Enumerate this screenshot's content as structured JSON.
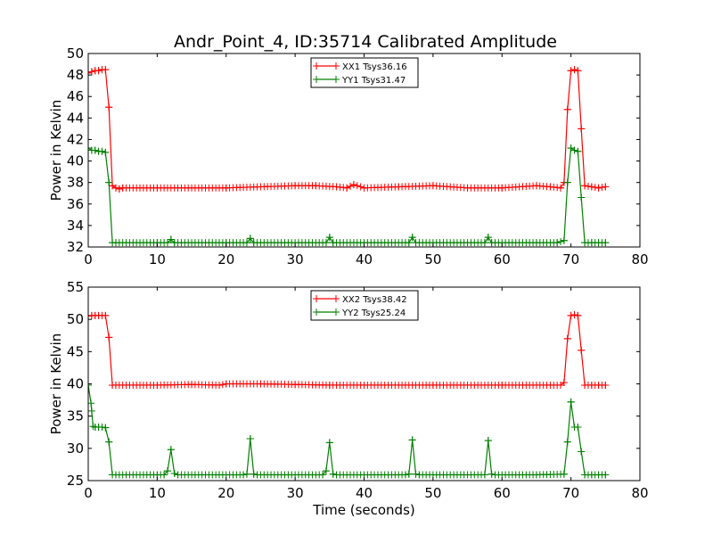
{
  "title": "Andr_Point_4, ID:35714 Calibrated Amplitude",
  "chart_data": [
    {
      "type": "line",
      "title": "Andr_Point_4, ID:35714 Calibrated Amplitude",
      "xlabel": "",
      "ylabel": "Power in Kelvin",
      "xlim": [
        0,
        80
      ],
      "ylim": [
        32,
        50
      ],
      "xticks": [
        "0",
        "10",
        "20",
        "30",
        "40",
        "50",
        "60",
        "70",
        "80"
      ],
      "yticks": [
        "32",
        "34",
        "36",
        "38",
        "40",
        "42",
        "44",
        "46",
        "48",
        "50"
      ],
      "grid": false,
      "legend": "top-center",
      "series": [
        {
          "name": "XX1 Tsys36.16",
          "color": "#ff0000",
          "x": [
            0,
            0.5,
            1.0,
            1.5,
            2.0,
            2.5,
            3.0,
            3.5,
            4.0,
            4.5,
            5.0,
            10.0,
            20.0,
            30.0,
            33.0,
            36.0,
            37.5,
            38.5,
            40.0,
            45.0,
            50.0,
            55.0,
            60.0,
            65.0,
            67.0,
            68.5,
            69.0,
            69.5,
            70.0,
            70.5,
            71.0,
            71.5,
            72.0,
            73.0,
            74.0,
            75.0
          ],
          "values": [
            48.2,
            48.3,
            48.4,
            48.4,
            48.5,
            48.5,
            45.0,
            37.7,
            37.5,
            37.4,
            37.5,
            37.5,
            37.5,
            37.7,
            37.7,
            37.6,
            37.5,
            37.8,
            37.5,
            37.6,
            37.7,
            37.5,
            37.5,
            37.7,
            37.6,
            37.5,
            38.0,
            44.8,
            48.4,
            48.5,
            48.4,
            43.0,
            37.7,
            37.6,
            37.5,
            37.6
          ]
        },
        {
          "name": "YY1 Tsys31.47",
          "color": "#008000",
          "x": [
            0,
            0.5,
            1.0,
            1.5,
            2.0,
            2.5,
            3.0,
            3.5,
            4.0,
            10.0,
            11.5,
            12.0,
            12.5,
            20.0,
            23.0,
            23.5,
            24.0,
            34.5,
            35.0,
            35.5,
            46.5,
            47.0,
            47.5,
            57.5,
            58.0,
            58.5,
            65.0,
            68.0,
            69.0,
            69.5,
            70.0,
            70.5,
            71.0,
            71.5,
            72.0,
            73.0,
            74.0,
            75.0
          ],
          "values": [
            41.2,
            41.0,
            41.0,
            40.9,
            40.9,
            40.8,
            38.0,
            32.4,
            32.4,
            32.4,
            32.4,
            32.7,
            32.4,
            32.4,
            32.4,
            32.8,
            32.4,
            32.4,
            32.9,
            32.4,
            32.4,
            32.9,
            32.4,
            32.4,
            32.9,
            32.4,
            32.4,
            32.4,
            32.6,
            38.0,
            41.2,
            41.0,
            40.9,
            36.6,
            32.4,
            32.4,
            32.4,
            32.4
          ]
        }
      ]
    },
    {
      "type": "line",
      "title": "",
      "xlabel": "Time (seconds)",
      "ylabel": "Power in Kelvin",
      "xlim": [
        0,
        80
      ],
      "ylim": [
        25,
        55
      ],
      "xticks": [
        "0",
        "10",
        "20",
        "30",
        "40",
        "50",
        "60",
        "70",
        "80"
      ],
      "yticks": [
        "25",
        "30",
        "35",
        "40",
        "45",
        "50",
        "55"
      ],
      "grid": false,
      "legend": "top-center",
      "series": [
        {
          "name": "XX2 Tsys38.42",
          "color": "#ff0000",
          "x": [
            0,
            0.5,
            1.0,
            1.5,
            2.0,
            2.5,
            3.0,
            3.5,
            4.0,
            10.0,
            15.0,
            19.0,
            20.0,
            25.0,
            30.0,
            35.0,
            40.0,
            50.0,
            60.0,
            68.5,
            69.0,
            69.5,
            70.0,
            70.5,
            71.0,
            71.5,
            72.0,
            73.0,
            74.0,
            75.0
          ],
          "values": [
            50.5,
            50.6,
            50.6,
            50.6,
            50.6,
            50.6,
            47.2,
            39.8,
            39.8,
            39.8,
            39.9,
            39.8,
            40.0,
            40.0,
            39.9,
            39.8,
            39.8,
            39.8,
            39.8,
            39.8,
            40.2,
            47.0,
            50.6,
            50.7,
            50.6,
            45.2,
            39.8,
            39.8,
            39.8,
            39.8
          ]
        },
        {
          "name": "YY2 Tsys25.24",
          "color": "#008000",
          "x": [
            0,
            0.4,
            0.7,
            1.0,
            1.5,
            2.0,
            2.5,
            3.0,
            3.5,
            4.0,
            10.0,
            11.0,
            11.5,
            12.0,
            12.5,
            13.0,
            22.5,
            23.0,
            23.5,
            24.0,
            24.5,
            34.0,
            34.5,
            35.0,
            35.5,
            36.0,
            46.0,
            46.5,
            47.0,
            47.5,
            48.0,
            57.5,
            58.0,
            58.5,
            59.0,
            65.0,
            69.0,
            69.5,
            70.0,
            70.5,
            71.0,
            71.5,
            72.0,
            73.0,
            74.0,
            75.0
          ],
          "values": [
            39.8,
            37.0,
            33.4,
            33.3,
            33.3,
            33.3,
            33.2,
            31.0,
            25.9,
            25.9,
            25.9,
            25.9,
            26.5,
            29.8,
            26.1,
            25.9,
            25.9,
            26.0,
            31.5,
            26.0,
            25.9,
            25.9,
            26.5,
            30.9,
            26.0,
            25.9,
            25.9,
            26.0,
            31.3,
            26.0,
            25.9,
            25.9,
            31.2,
            26.0,
            25.9,
            25.9,
            26.0,
            31.0,
            37.2,
            33.3,
            33.3,
            29.5,
            25.9,
            25.9,
            25.9,
            25.9
          ]
        }
      ]
    }
  ]
}
